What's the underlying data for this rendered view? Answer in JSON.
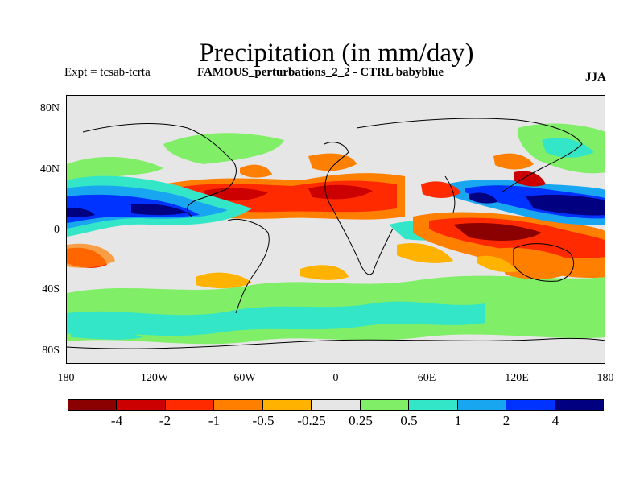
{
  "title": "Precipitation (in mm/day)",
  "subtitle_left": "Expt = tcsab-tcrta",
  "subtitle_center": "FAMOUS_perturbations_2_2 - CTRL babyblue",
  "season": "JJA",
  "y_axis_labels": [
    "80N",
    "40N",
    "0",
    "40S",
    "80S"
  ],
  "x_axis_labels": [
    "180",
    "120W",
    "60W",
    "0",
    "60E",
    "120E",
    "180"
  ],
  "colorbar": {
    "labels": [
      "-4",
      "-2",
      "-1",
      "-0.5",
      "-0.25",
      "0.25",
      "0.5",
      "1",
      "2",
      "4"
    ],
    "colors": [
      "#8b0000",
      "#cc0000",
      "#ff2a00",
      "#ff8000",
      "#ffb300",
      "#e6e6e6",
      "#80ee66",
      "#33e6c8",
      "#19a6f0",
      "#0033ff",
      "#000080"
    ]
  },
  "map_colors": {
    "dark_red": "#8b0000",
    "red": "#cc0000",
    "orange_red": "#ff2a00",
    "orange": "#ff8000",
    "amber": "#ffb300",
    "neutral": "#e6e6e6",
    "green": "#80ee66",
    "teal": "#33e6c8",
    "sky": "#19a6f0",
    "blue": "#0033ff",
    "navy": "#000080"
  }
}
